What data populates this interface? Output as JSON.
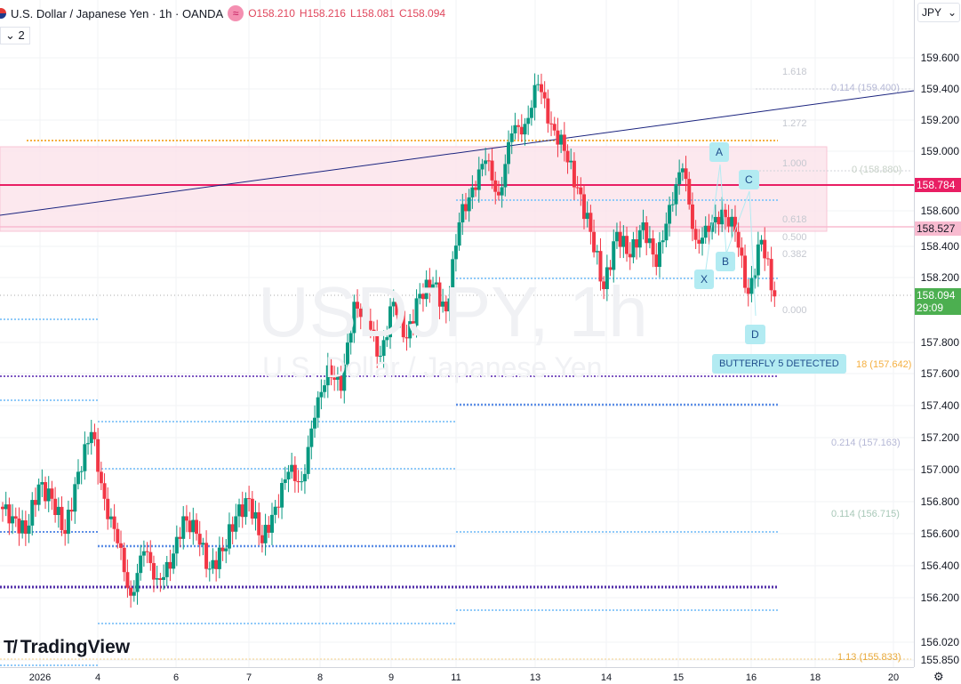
{
  "header": {
    "title": "U.S. Dollar / Japanese Yen · 1h · OANDA",
    "open": "O158.210",
    "high": "H158.216",
    "low": "L158.081",
    "close": "C158.094",
    "collapse_count": "2"
  },
  "watermark": {
    "symbol": "USDJPY, 1h",
    "name": "U.S. Dollar / Japanese Yen"
  },
  "currency": "JPY",
  "brand": "TradingView",
  "colors": {
    "up": "#089981",
    "down": "#f23645",
    "zone": "#fce4ec",
    "red_line": "#e91e63",
    "trend": "#1a237e"
  },
  "chart_data": {
    "type": "candlestick",
    "title": "USDJPY, 1h",
    "ylim": [
      155.78,
      159.7
    ],
    "closes": [
      156.77,
      156.71,
      156.6,
      156.91,
      156.82,
      156.6,
      156.99,
      157.24,
      156.82,
      156.54,
      156.21,
      156.49,
      156.32,
      156.38,
      156.71,
      156.6,
      156.38,
      156.49,
      156.71,
      156.82,
      156.54,
      156.77,
      156.99,
      156.93,
      157.33,
      157.66,
      157.5,
      158.06,
      157.94,
      157.72,
      158.06,
      157.83,
      158.11,
      158.17,
      158.0,
      158.56,
      158.78,
      158.95,
      158.73,
      159.12,
      159.18,
      159.43,
      159.18,
      159.01,
      158.78,
      158.5,
      158.14,
      158.5,
      158.34,
      158.56,
      158.28,
      158.67,
      158.9,
      158.45,
      158.5,
      158.64,
      158.5,
      158.11,
      158.45,
      158.094
    ],
    "y_ticks": [
      "159.600",
      "159.400",
      "159.200",
      "159.000",
      "158.600",
      "158.400",
      "158.200",
      "157.800",
      "157.600",
      "157.400",
      "157.200",
      "157.000",
      "156.800",
      "156.600",
      "156.400",
      "156.200",
      "156.020",
      "155.850"
    ],
    "x_ticks": [
      "2026",
      "4",
      "6",
      "7",
      "8",
      "9",
      "11",
      "13",
      "14",
      "15",
      "16",
      "18",
      "20"
    ],
    "price_tags": [
      {
        "value": "158.784",
        "color": "#e91e63"
      },
      {
        "value": "158.527",
        "color": "#f8bbd0"
      },
      {
        "value": "158.094",
        "countdown": "29:09",
        "color": "#4caf50"
      }
    ],
    "fib_levels": [
      "1.618",
      "1.272",
      "1.000",
      "0.618",
      "0.500",
      "0.382",
      "0.000"
    ],
    "fib_annotations": [
      "0 (158.880)",
      "0.114 (159.400)",
      "18 (157.642)",
      "0.214 (157.163)",
      "0.114 (156.715)",
      "1.13 (155.833)"
    ],
    "pattern": {
      "points": [
        "X",
        "A",
        "B",
        "C",
        "D"
      ],
      "label": "BUTTERFLY 5 DETECTED"
    }
  }
}
